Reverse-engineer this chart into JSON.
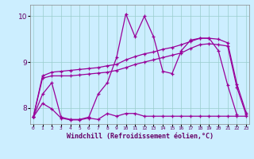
{
  "x_values": [
    0,
    1,
    2,
    3,
    4,
    5,
    6,
    7,
    8,
    9,
    10,
    11,
    12,
    13,
    14,
    15,
    16,
    17,
    18,
    19,
    20,
    21,
    22,
    23
  ],
  "line_spline1": [
    7.8,
    8.65,
    8.7,
    8.7,
    8.7,
    8.72,
    8.74,
    8.76,
    8.78,
    8.82,
    8.88,
    8.95,
    9.0,
    9.05,
    9.1,
    9.15,
    9.2,
    9.3,
    9.38,
    9.4,
    9.38,
    9.35,
    8.45,
    7.85
  ],
  "line_spline2": [
    7.8,
    8.7,
    8.78,
    8.8,
    8.82,
    8.84,
    8.86,
    8.88,
    8.92,
    8.95,
    9.05,
    9.12,
    9.18,
    9.22,
    9.28,
    9.32,
    9.38,
    9.45,
    9.52,
    9.52,
    9.5,
    9.42,
    8.52,
    7.9
  ],
  "line_volatile": [
    7.8,
    8.3,
    8.55,
    7.8,
    7.75,
    7.75,
    7.8,
    8.3,
    8.55,
    9.1,
    10.05,
    9.55,
    10.0,
    9.55,
    8.8,
    8.75,
    9.25,
    9.48,
    9.52,
    9.52,
    9.25,
    8.5,
    7.85,
    null
  ],
  "line_flat": [
    7.8,
    8.1,
    7.98,
    7.78,
    7.74,
    7.74,
    7.78,
    7.75,
    7.88,
    7.82,
    7.88,
    7.88,
    7.82,
    7.82,
    7.82,
    7.82,
    7.82,
    7.82,
    7.82,
    7.82,
    7.82,
    7.82,
    7.82,
    7.82
  ],
  "ylim": [
    7.65,
    10.25
  ],
  "yticks": [
    8,
    9,
    10
  ],
  "xlim": [
    -0.3,
    23.3
  ],
  "line_color": "#990099",
  "bg_color": "#cceeff",
  "grid_color": "#99cccc",
  "xlabel": "Windchill (Refroidissement éolien,°C)",
  "xlabel_color": "#660066",
  "tick_color": "#660066"
}
